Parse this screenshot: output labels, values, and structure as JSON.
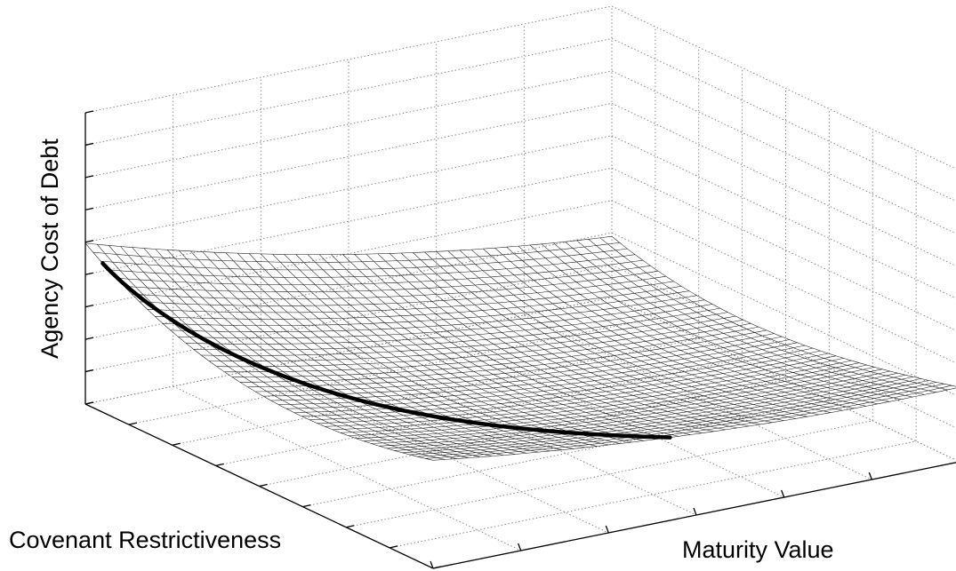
{
  "chart_data": {
    "type": "surface",
    "title": "",
    "zlabel": "Agency Cost of Debt",
    "xlabel": "Covenant Restrictiveness",
    "ylabel": "Maturity Value",
    "grid": true,
    "tick_labels_shown": false,
    "surface": {
      "description_shape": "convex bowl",
      "u_range": [
        0,
        1
      ],
      "v_range": [
        0,
        1
      ],
      "mesh_lines_u": 45,
      "mesh_lines_v": 45,
      "corner_values": {
        "u0_v0": 0.92,
        "u1_v0": 0.7,
        "u0_v1": 0.5,
        "u1_v1": 0.0
      },
      "minimum_cost_path": {
        "from": [
          0.05,
          0.0
        ],
        "to": [
          1.0,
          0.45
        ],
        "note": "bold curve along the valley of the surface"
      }
    }
  }
}
